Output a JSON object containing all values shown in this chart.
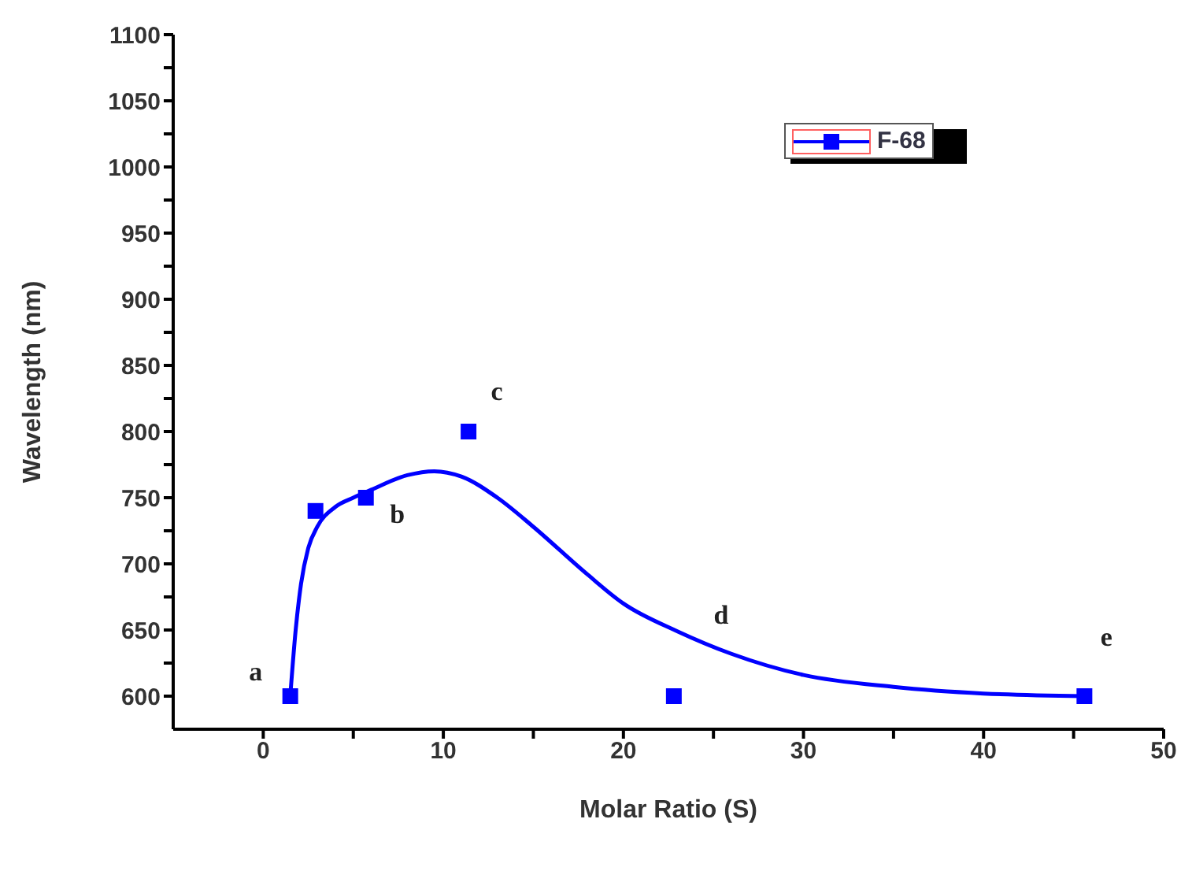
{
  "chart_data": {
    "type": "scatter",
    "xlabel": "Molar Ratio (S)",
    "ylabel": "Wavelength (nm)",
    "xlim": [
      -5,
      50
    ],
    "xticks": [
      0,
      {
        "value": 5,
        "label": null
      },
      10,
      {
        "value": 15,
        "label": null
      },
      20,
      {
        "value": 25,
        "label": null
      },
      30,
      {
        "value": 35,
        "label": null
      },
      40,
      {
        "value": 45,
        "label": null
      },
      50
    ],
    "ylim": [
      575,
      1100
    ],
    "yticks": [
      600,
      {
        "value": 625,
        "label": null
      },
      650,
      {
        "value": 675,
        "label": null
      },
      700,
      {
        "value": 725,
        "label": null
      },
      750,
      {
        "value": 775,
        "label": null
      },
      800,
      {
        "value": 825,
        "label": null
      },
      850,
      {
        "value": 875,
        "label": null
      },
      900,
      {
        "value": 925,
        "label": null
      },
      950,
      {
        "value": 975,
        "label": null
      },
      1000,
      {
        "value": 1025,
        "label": null
      },
      1050,
      {
        "value": 1075,
        "label": null
      },
      1100
    ],
    "legend": "top right",
    "series": [
      {
        "name": "F-68",
        "marker": "square",
        "color": "#0000ff",
        "x": [
          1.5,
          2.9,
          5.7,
          11.4,
          22.8,
          45.6
        ],
        "values": [
          600,
          740,
          750,
          800,
          600,
          600
        ]
      },
      {
        "type": "line",
        "marker": "none",
        "color": "#0000ff",
        "x": [
          1.5,
          1.8,
          2.1,
          2.5,
          3,
          4,
          5,
          6,
          8,
          9.5,
          11,
          13,
          15,
          18,
          20,
          23,
          26,
          30,
          35,
          40,
          45.6
        ],
        "values": [
          600,
          650,
          685,
          712,
          728,
          743,
          750,
          756,
          767,
          770,
          766,
          750,
          728,
          692,
          670,
          649,
          632,
          616,
          607,
          602,
          600
        ]
      }
    ],
    "annotations": [
      {
        "text": "a",
        "x": 1.5,
        "y": 600
      },
      {
        "text": "b",
        "x": 5.7,
        "y": 750
      },
      {
        "text": "c",
        "x": 11.4,
        "y": 800
      },
      {
        "text": "d",
        "x": 22.8,
        "y": 600
      },
      {
        "text": "e",
        "x": 45.6,
        "y": 600
      }
    ]
  }
}
